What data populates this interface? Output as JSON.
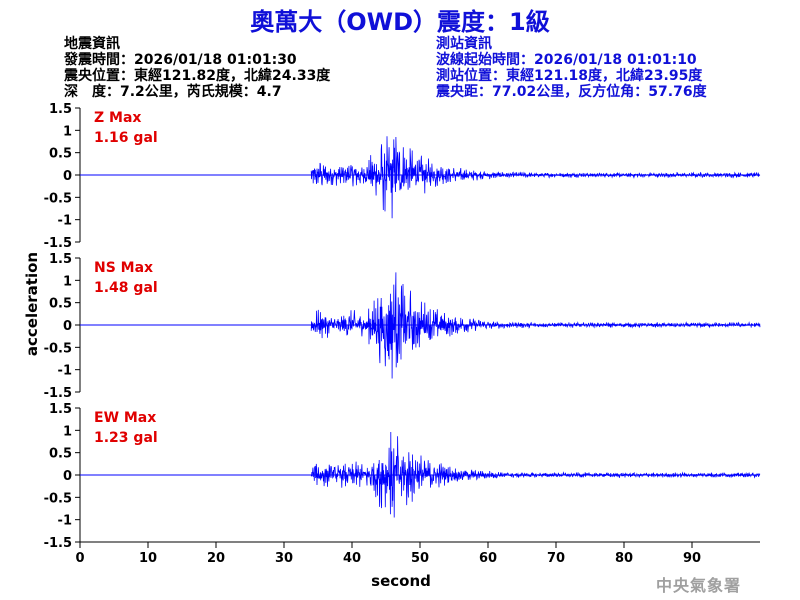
{
  "title": "奧萬大（OWD）震度：1級",
  "quake_info": {
    "heading": "地震資訊",
    "origin_time": "發震時間：2026/01/18 01:01:30",
    "epicenter": "震央位置：東經121.82度，北緯24.33度",
    "depth_magnitude": "深　度：7.2公里，芮氏規模：4.7"
  },
  "station_info": {
    "heading": "測站資訊",
    "wave_start": "波線起始時間：2026/01/18 01:01:10",
    "station_location": "測站位置：東經121.18度，北緯23.95度",
    "distance_azimuth": "震央距：77.02公里，反方位角：57.76度"
  },
  "watermark": "中央氣象署",
  "colors": {
    "title": "#1010d8",
    "trace": "#0000ff",
    "max_label": "#e00000",
    "axis": "#000000"
  },
  "chart_data": {
    "type": "line",
    "xlabel": "second",
    "ylabel": "acceleration",
    "xlim": [
      0,
      100
    ],
    "ylim": [
      -1.5,
      1.5
    ],
    "x_ticks": [
      0,
      10,
      20,
      30,
      40,
      50,
      60,
      70,
      80,
      90
    ],
    "y_ticks": [
      "1.5",
      "1",
      "0.5",
      "0",
      "-0.5",
      "-1",
      "-1.5"
    ],
    "grid": false,
    "onset_seconds": 34,
    "peak_seconds": 46,
    "panels": [
      {
        "name": "Z",
        "max_label": "Z Max",
        "max_value": "1.16 gal",
        "peak": 1.16
      },
      {
        "name": "NS",
        "max_label": "NS Max",
        "max_value": "1.48 gal",
        "peak": 1.48
      },
      {
        "name": "EW",
        "max_label": "EW Max",
        "max_value": "1.23 gal",
        "peak": 1.23
      }
    ]
  }
}
